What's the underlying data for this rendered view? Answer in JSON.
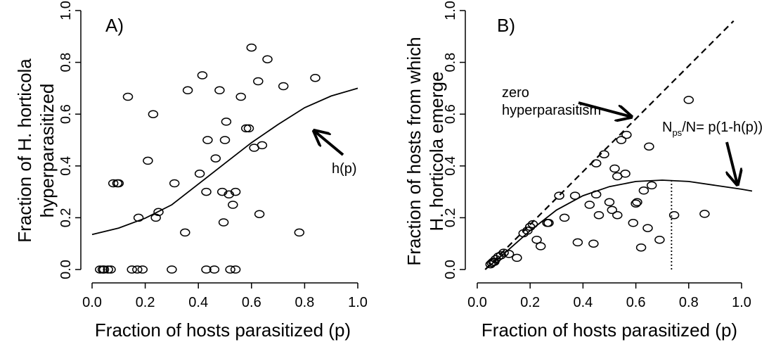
{
  "chart_data": [
    {
      "type": "scatter",
      "panel_label": "A)",
      "xlabel": "Fraction of hosts parasitized (p)",
      "ylabel_lines": [
        "Fraction of H. horticola",
        "hyperparasitized"
      ],
      "xlim": [
        0,
        1
      ],
      "ylim": [
        0,
        1
      ],
      "xticks": [
        "0.0",
        "0.2",
        "0.4",
        "0.6",
        "0.8",
        "1.0"
      ],
      "yticks": [
        "0.0",
        "0.2",
        "0.4",
        "0.6",
        "0.8",
        "1.0"
      ],
      "grid": false,
      "points": [
        [
          0.03,
          0.0
        ],
        [
          0.04,
          0.0
        ],
        [
          0.045,
          0.0
        ],
        [
          0.06,
          0.0
        ],
        [
          0.07,
          0.0
        ],
        [
          0.15,
          0.0
        ],
        [
          0.17,
          0.0
        ],
        [
          0.19,
          0.0
        ],
        [
          0.3,
          0.0
        ],
        [
          0.43,
          0.0
        ],
        [
          0.46,
          0.0
        ],
        [
          0.52,
          0.0
        ],
        [
          0.54,
          0.0
        ],
        [
          0.08,
          0.333
        ],
        [
          0.095,
          0.333
        ],
        [
          0.1,
          0.333
        ],
        [
          0.135,
          0.667
        ],
        [
          0.175,
          0.2
        ],
        [
          0.21,
          0.42
        ],
        [
          0.23,
          0.6
        ],
        [
          0.24,
          0.2
        ],
        [
          0.25,
          0.222
        ],
        [
          0.31,
          0.333
        ],
        [
          0.35,
          0.143
        ],
        [
          0.36,
          0.692
        ],
        [
          0.405,
          0.37
        ],
        [
          0.415,
          0.75
        ],
        [
          0.43,
          0.3
        ],
        [
          0.435,
          0.5
        ],
        [
          0.465,
          0.429
        ],
        [
          0.48,
          0.692
        ],
        [
          0.49,
          0.3
        ],
        [
          0.495,
          0.182
        ],
        [
          0.5,
          0.5
        ],
        [
          0.505,
          0.571
        ],
        [
          0.515,
          0.29
        ],
        [
          0.53,
          0.25
        ],
        [
          0.54,
          0.3
        ],
        [
          0.56,
          0.667
        ],
        [
          0.58,
          0.545
        ],
        [
          0.59,
          0.545
        ],
        [
          0.6,
          0.857
        ],
        [
          0.61,
          0.47
        ],
        [
          0.625,
          0.727
        ],
        [
          0.63,
          0.214
        ],
        [
          0.64,
          0.48
        ],
        [
          0.66,
          0.812
        ],
        [
          0.72,
          0.708
        ],
        [
          0.78,
          0.143
        ],
        [
          0.84,
          0.74
        ]
      ],
      "curve": {
        "label": "h(p)",
        "points": [
          [
            0.0,
            0.135
          ],
          [
            0.1,
            0.16
          ],
          [
            0.2,
            0.198
          ],
          [
            0.3,
            0.25
          ],
          [
            0.4,
            0.33
          ],
          [
            0.5,
            0.41
          ],
          [
            0.6,
            0.49
          ],
          [
            0.7,
            0.56
          ],
          [
            0.8,
            0.625
          ],
          [
            0.9,
            0.67
          ],
          [
            1.0,
            0.7
          ]
        ]
      }
    },
    {
      "type": "scatter",
      "panel_label": "B)",
      "xlabel": "Fraction of hosts parasitized (p)",
      "ylabel_lines": [
        "Fraction of hosts from which",
        "H. horticola emerge"
      ],
      "xlim": [
        0,
        1
      ],
      "ylim": [
        0,
        1
      ],
      "xticks": [
        "0.0",
        "0.2",
        "0.4",
        "0.6",
        "0.8",
        "1.0"
      ],
      "yticks": [
        "0.0",
        "0.2",
        "0.4",
        "0.6",
        "0.8",
        "1.0"
      ],
      "grid": false,
      "points": [
        [
          0.05,
          0.02
        ],
        [
          0.055,
          0.025
        ],
        [
          0.06,
          0.03
        ],
        [
          0.065,
          0.03
        ],
        [
          0.07,
          0.04
        ],
        [
          0.08,
          0.05
        ],
        [
          0.09,
          0.055
        ],
        [
          0.1,
          0.065
        ],
        [
          0.12,
          0.06
        ],
        [
          0.15,
          0.045
        ],
        [
          0.175,
          0.14
        ],
        [
          0.19,
          0.15
        ],
        [
          0.2,
          0.165
        ],
        [
          0.21,
          0.175
        ],
        [
          0.225,
          0.115
        ],
        [
          0.24,
          0.09
        ],
        [
          0.265,
          0.18
        ],
        [
          0.27,
          0.18
        ],
        [
          0.31,
          0.285
        ],
        [
          0.33,
          0.2
        ],
        [
          0.37,
          0.285
        ],
        [
          0.38,
          0.105
        ],
        [
          0.425,
          0.25
        ],
        [
          0.44,
          0.1
        ],
        [
          0.45,
          0.41
        ],
        [
          0.45,
          0.29
        ],
        [
          0.46,
          0.21
        ],
        [
          0.48,
          0.445
        ],
        [
          0.5,
          0.26
        ],
        [
          0.51,
          0.23
        ],
        [
          0.52,
          0.39
        ],
        [
          0.53,
          0.21
        ],
        [
          0.53,
          0.36
        ],
        [
          0.545,
          0.5
        ],
        [
          0.56,
          0.37
        ],
        [
          0.565,
          0.52
        ],
        [
          0.59,
          0.18
        ],
        [
          0.6,
          0.255
        ],
        [
          0.605,
          0.26
        ],
        [
          0.62,
          0.085
        ],
        [
          0.63,
          0.305
        ],
        [
          0.645,
          0.16
        ],
        [
          0.65,
          0.475
        ],
        [
          0.66,
          0.325
        ],
        [
          0.69,
          0.115
        ],
        [
          0.745,
          0.21
        ],
        [
          0.8,
          0.655
        ],
        [
          0.86,
          0.215
        ]
      ],
      "dashed_line": {
        "label": "zero hyperparasitism",
        "points": [
          [
            0.03,
            0.0
          ],
          [
            0.97,
            0.96
          ]
        ]
      },
      "curve": {
        "label": "N_ps/N= p(1-h(p))",
        "points": [
          [
            0.03,
            0.0
          ],
          [
            0.1,
            0.06
          ],
          [
            0.2,
            0.15
          ],
          [
            0.3,
            0.23
          ],
          [
            0.4,
            0.285
          ],
          [
            0.5,
            0.32
          ],
          [
            0.6,
            0.34
          ],
          [
            0.7,
            0.345
          ],
          [
            0.8,
            0.34
          ],
          [
            0.9,
            0.325
          ],
          [
            1.0,
            0.31
          ],
          [
            1.04,
            0.303
          ]
        ]
      },
      "vline": {
        "x": 0.735,
        "y0": 0.0,
        "y1": 0.347
      }
    }
  ],
  "annotations": {
    "a_hp": "h(p)",
    "b_zero_1": "zero",
    "b_zero_2": "hyperparasitism",
    "b_eq_N": "N",
    "b_eq_sub": "ps",
    "b_eq_rest": "/N= p(1-h(p))"
  }
}
